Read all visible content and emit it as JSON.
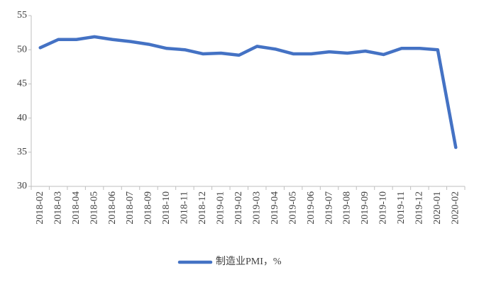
{
  "chart_data": {
    "type": "line",
    "categories": [
      "2018-02",
      "2018-03",
      "2018-04",
      "2018-05",
      "2018-06",
      "2018-07",
      "2018-09",
      "2018-10",
      "2018-11",
      "2018-12",
      "2019-01",
      "2019-02",
      "2019-03",
      "2019-04",
      "2019-05",
      "2019-06",
      "2019-07",
      "2019-08",
      "2019-09",
      "2019-10",
      "2019-11",
      "2019-12",
      "2020-01",
      "2020-02"
    ],
    "series": [
      {
        "name": "制造业PMI，%",
        "color": "#4472c4",
        "values": [
          50.3,
          51.5,
          51.5,
          51.9,
          51.5,
          51.2,
          50.8,
          50.2,
          50.0,
          49.4,
          49.5,
          49.2,
          50.5,
          50.1,
          49.4,
          49.4,
          49.7,
          49.5,
          49.8,
          49.3,
          50.2,
          50.2,
          50.0,
          35.7
        ]
      }
    ],
    "ylim": [
      30,
      55
    ],
    "yticks": [
      30,
      35,
      40,
      45,
      50,
      55
    ],
    "grid": false,
    "legend": "bottom"
  }
}
